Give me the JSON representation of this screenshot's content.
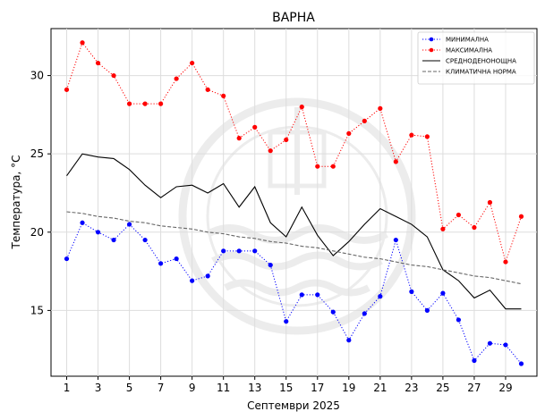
{
  "chart_data": {
    "type": "line",
    "title": "ВАРНА",
    "xlabel": "Септември  2025",
    "ylabel": "Температура,  °C",
    "xlim": [
      0,
      31
    ],
    "ylim": [
      10.8,
      33.0
    ],
    "xticks": [
      1,
      3,
      5,
      7,
      9,
      11,
      13,
      15,
      17,
      19,
      21,
      23,
      25,
      27,
      29
    ],
    "yticks": [
      15,
      20,
      25,
      30
    ],
    "grid": true,
    "legend_position": "top-right",
    "x": [
      1,
      2,
      3,
      4,
      5,
      6,
      7,
      8,
      9,
      10,
      11,
      12,
      13,
      14,
      15,
      16,
      17,
      18,
      19,
      20,
      21,
      22,
      23,
      24,
      25,
      26,
      27,
      28,
      29,
      30
    ],
    "series": [
      {
        "name": "МИНИМАЛНА",
        "color": "#0000ff",
        "style": "dotted-marker",
        "values": [
          18.3,
          20.6,
          20.0,
          19.5,
          20.5,
          19.5,
          18.0,
          18.3,
          16.9,
          17.2,
          18.8,
          18.8,
          18.8,
          17.9,
          14.3,
          16.0,
          16.0,
          14.9,
          13.1,
          14.8,
          15.9,
          19.5,
          16.2,
          15.0,
          16.1,
          14.4,
          11.8,
          12.9,
          12.8,
          11.6
        ]
      },
      {
        "name": "МАКСИМАЛНА",
        "color": "#ff0000",
        "style": "dotted-marker",
        "values": [
          29.1,
          32.1,
          30.8,
          30.0,
          28.2,
          28.2,
          28.2,
          29.8,
          30.8,
          29.1,
          28.7,
          26.0,
          26.7,
          25.2,
          25.9,
          28.0,
          24.2,
          24.2,
          26.3,
          27.1,
          27.9,
          24.5,
          26.2,
          26.1,
          20.2,
          21.1,
          20.3,
          21.9,
          18.1,
          21.0
        ]
      },
      {
        "name": "СРЕДНОДЕНОНОЩНА",
        "color": "#000000",
        "style": "solid",
        "values": [
          23.6,
          25.0,
          24.8,
          24.7,
          24.0,
          23.0,
          22.2,
          22.9,
          23.0,
          22.5,
          23.1,
          21.6,
          22.9,
          20.6,
          19.7,
          21.6,
          19.8,
          18.5,
          19.4,
          20.5,
          21.5,
          21.0,
          20.5,
          19.7,
          17.6,
          16.9,
          15.8,
          16.3,
          15.1,
          15.1
        ]
      },
      {
        "name": "КЛИМАТИЧНА НОРМА",
        "color": "#666666",
        "style": "dashed",
        "values": [
          21.3,
          21.2,
          21.0,
          20.9,
          20.7,
          20.6,
          20.4,
          20.3,
          20.2,
          20.0,
          19.9,
          19.7,
          19.6,
          19.4,
          19.3,
          19.1,
          19.0,
          18.8,
          18.6,
          18.4,
          18.3,
          18.1,
          17.9,
          17.8,
          17.6,
          17.4,
          17.2,
          17.1,
          16.9,
          16.7
        ]
      }
    ]
  }
}
